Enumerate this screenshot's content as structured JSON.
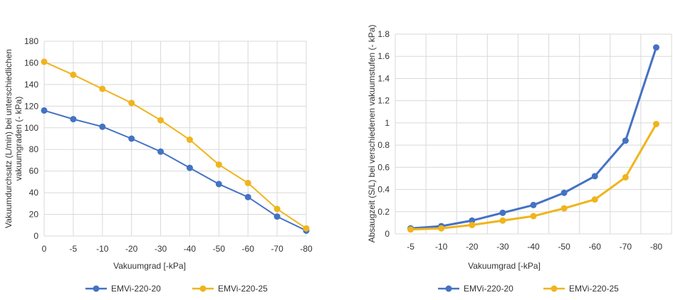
{
  "chart_data": [
    {
      "type": "line",
      "categories": [
        "0",
        "-5",
        "-10",
        "-20",
        "-30",
        "-40",
        "-50",
        "-60",
        "-70",
        "-80"
      ],
      "series": [
        {
          "name": "EMVi-220-20",
          "color": "#4472c4",
          "values": [
            116,
            108,
            101,
            90,
            78,
            63,
            48,
            36,
            18,
            5
          ]
        },
        {
          "name": "EMVi-220-25",
          "color": "#f0b41c",
          "values": [
            161,
            149,
            136,
            123,
            107,
            89,
            66,
            49,
            25,
            7
          ]
        }
      ],
      "y_ticks": [
        "0",
        "20",
        "40",
        "60",
        "80",
        "100",
        "120",
        "140",
        "160",
        "180"
      ],
      "ylim": [
        0,
        180
      ],
      "xlabel": "Vakuumgrad [-kPa]",
      "ylabel_lines": [
        "Vakuumdurchsatz (L/min) bei unterschiedlichen",
        "vakuumgraden (- kPa)"
      ],
      "grid": true,
      "legend_position": "bottom"
    },
    {
      "type": "line",
      "categories": [
        "-5",
        "-10",
        "-20",
        "-30",
        "-40",
        "-50",
        "-60",
        "-70",
        "-80"
      ],
      "series": [
        {
          "name": "EMVi-220-20",
          "color": "#4472c4",
          "values": [
            0.05,
            0.07,
            0.12,
            0.19,
            0.26,
            0.37,
            0.52,
            0.84,
            1.68
          ]
        },
        {
          "name": "EMVi-220-25",
          "color": "#f0b41c",
          "values": [
            0.04,
            0.05,
            0.08,
            0.12,
            0.16,
            0.23,
            0.31,
            0.51,
            0.99
          ]
        }
      ],
      "y_ticks": [
        "0",
        "0.2",
        "0.4",
        "0.6",
        "0.8",
        "1",
        "1.2",
        "1.4",
        "1.6",
        "1.8"
      ],
      "ylim": [
        0,
        1.8
      ],
      "xlabel": "Vakuumgrad [-kPa]",
      "ylabel_lines": [
        "Absaugzeit (S/L) bei verschiedenen vakuumstufen (- kPa)"
      ],
      "grid": true,
      "legend_position": "bottom"
    }
  ]
}
